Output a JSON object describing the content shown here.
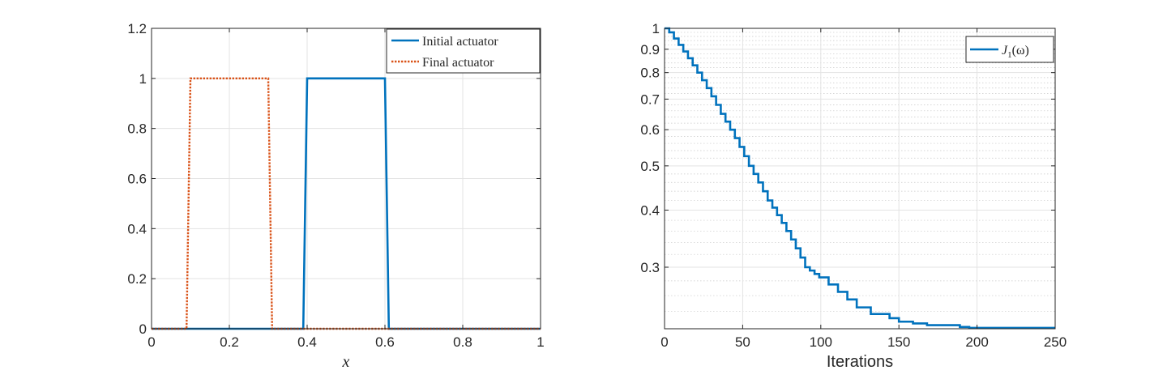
{
  "chart_data": [
    {
      "type": "line",
      "xlabel": "x",
      "ylabel": "",
      "xlim": [
        0,
        1
      ],
      "ylim": [
        0,
        1.2
      ],
      "xticks": [
        0,
        0.2,
        0.4,
        0.6,
        0.8,
        1
      ],
      "xtick_labels": [
        "0",
        "0.2",
        "0.4",
        "0.6",
        "0.8",
        "1"
      ],
      "yticks": [
        0,
        0.2,
        0.4,
        0.6,
        0.8,
        1,
        1.2
      ],
      "ytick_labels": [
        "0",
        "0.2",
        "0.4",
        "0.6",
        "0.8",
        "1",
        "1.2"
      ],
      "grid": true,
      "legend": "top-right",
      "series": [
        {
          "name": "Initial actuator",
          "color": "#0072BD",
          "style": "solid",
          "x": [
            0,
            0.39,
            0.4,
            0.6,
            0.61,
            1
          ],
          "y": [
            0,
            0,
            1,
            1,
            0,
            0
          ]
        },
        {
          "name": "Final actuator",
          "color": "#D95319",
          "style": "dotted",
          "x": [
            0,
            0.09,
            0.1,
            0.3,
            0.31,
            1
          ],
          "y": [
            0,
            0,
            1,
            1,
            0,
            0
          ]
        }
      ]
    },
    {
      "type": "line",
      "xlabel": "Iterations",
      "ylabel": "",
      "xlim": [
        0,
        250
      ],
      "ylim": [
        0.22,
        1
      ],
      "yscale": "log",
      "xticks": [
        0,
        50,
        100,
        150,
        200,
        250
      ],
      "xtick_labels": [
        "0",
        "50",
        "100",
        "150",
        "200",
        "250"
      ],
      "yticks": [
        0.3,
        0.4,
        0.5,
        0.6,
        0.7,
        0.8,
        0.9,
        1
      ],
      "ytick_labels": [
        "0.3",
        "0.4",
        "0.5",
        "0.6",
        "0.7",
        "0.8",
        "0.9",
        "1"
      ],
      "grid": true,
      "minor_grid": true,
      "legend": "top-right",
      "series": [
        {
          "name": "J_1(ω)",
          "color": "#0072BD",
          "style": "solid-step",
          "x": [
            0,
            3,
            6,
            9,
            12,
            15,
            18,
            21,
            24,
            27,
            30,
            33,
            36,
            39,
            42,
            45,
            48,
            51,
            54,
            57,
            60,
            63,
            66,
            69,
            72,
            75,
            78,
            81,
            84,
            87,
            90,
            93,
            96,
            99,
            105,
            111,
            117,
            123,
            132,
            144,
            150,
            159,
            168,
            189,
            195,
            250
          ],
          "y": [
            1.0,
            0.98,
            0.95,
            0.92,
            0.89,
            0.86,
            0.83,
            0.8,
            0.77,
            0.74,
            0.71,
            0.68,
            0.65,
            0.625,
            0.6,
            0.575,
            0.55,
            0.525,
            0.5,
            0.48,
            0.46,
            0.44,
            0.42,
            0.405,
            0.39,
            0.375,
            0.36,
            0.345,
            0.33,
            0.315,
            0.3,
            0.295,
            0.29,
            0.285,
            0.275,
            0.265,
            0.255,
            0.245,
            0.237,
            0.232,
            0.228,
            0.226,
            0.224,
            0.222,
            0.221,
            0.221
          ]
        }
      ]
    }
  ]
}
